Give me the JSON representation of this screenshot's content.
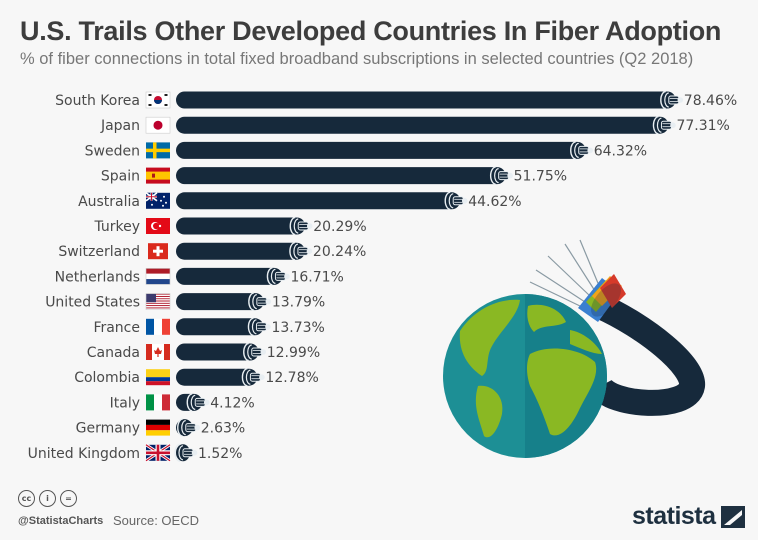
{
  "header": {
    "title": "U.S. Trails Other Developed Countries In Fiber Adoption",
    "subtitle": "% of fiber connections in total fixed broadband subscriptions in selected countries (Q2 2018)"
  },
  "chart_data": {
    "type": "bar",
    "orientation": "horizontal",
    "title": "U.S. Trails Other Developed Countries In Fiber Adoption",
    "subtitle": "% of fiber connections in total fixed broadband subscriptions in selected countries (Q2 2018)",
    "xlabel": "",
    "ylabel": "",
    "unit": "%",
    "xlim": [
      0,
      80
    ],
    "grid": false,
    "categories": [
      "South Korea",
      "Japan",
      "Sweden",
      "Spain",
      "Australia",
      "Turkey",
      "Switzerland",
      "Netherlands",
      "United States",
      "France",
      "Canada",
      "Colombia",
      "Italy",
      "Germany",
      "United Kingdom"
    ],
    "flags": [
      "kr",
      "jp",
      "se",
      "es",
      "au",
      "tr",
      "ch",
      "nl",
      "us",
      "fr",
      "ca",
      "co",
      "it",
      "de",
      "gb"
    ],
    "values": [
      78.46,
      77.31,
      64.32,
      51.75,
      44.62,
      20.29,
      20.24,
      16.71,
      13.79,
      13.73,
      12.99,
      12.78,
      4.12,
      2.63,
      1.52
    ],
    "value_labels": [
      "78.46%",
      "77.31%",
      "64.32%",
      "51.75%",
      "44.62%",
      "20.29%",
      "20.24%",
      "16.71%",
      "13.79%",
      "13.73%",
      "12.99%",
      "12.78%",
      "4.12%",
      "2.63%",
      "1.52%"
    ],
    "bar_color": "#16293b"
  },
  "footer": {
    "license_icons": [
      "cc-icon",
      "attribution-icon",
      "no-derivatives-icon"
    ],
    "cc_text": "cc",
    "by_text": "i",
    "nd_text": "=",
    "handle": "@StatistaCharts",
    "source": "Source: OECD",
    "brand": "statista"
  },
  "colors": {
    "bar": "#16293b",
    "text": "#4a4a4a",
    "globe_ocean": "#1d8f95",
    "globe_land": "#8ab823"
  }
}
